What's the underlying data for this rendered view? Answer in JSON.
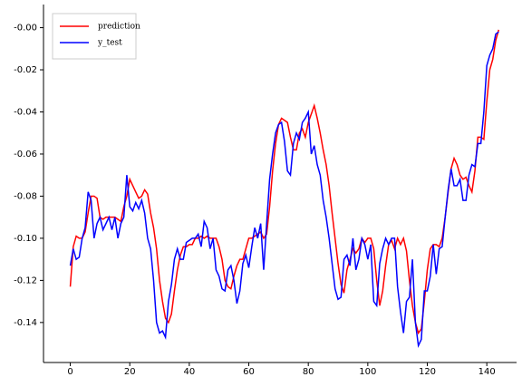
{
  "chart_data": {
    "type": "line",
    "x": [
      0,
      1,
      2,
      3,
      4,
      5,
      6,
      7,
      8,
      9,
      10,
      11,
      12,
      13,
      14,
      15,
      16,
      17,
      18,
      19,
      20,
      21,
      22,
      23,
      24,
      25,
      26,
      27,
      28,
      29,
      30,
      31,
      32,
      33,
      34,
      35,
      36,
      37,
      38,
      39,
      40,
      41,
      42,
      43,
      44,
      45,
      46,
      47,
      48,
      49,
      50,
      51,
      52,
      53,
      54,
      55,
      56,
      57,
      58,
      59,
      60,
      61,
      62,
      63,
      64,
      65,
      66,
      67,
      68,
      69,
      70,
      71,
      72,
      73,
      74,
      75,
      76,
      77,
      78,
      79,
      80,
      81,
      82,
      83,
      84,
      85,
      86,
      87,
      88,
      89,
      90,
      91,
      92,
      93,
      94,
      95,
      96,
      97,
      98,
      99,
      100,
      101,
      102,
      103,
      104,
      105,
      106,
      107,
      108,
      109,
      110,
      111,
      112,
      113,
      114,
      115,
      116,
      117,
      118,
      119,
      120,
      121,
      122,
      123,
      124,
      125,
      126,
      127,
      128,
      129,
      130,
      131,
      132,
      133,
      134,
      135,
      136,
      137,
      138,
      139,
      140,
      141,
      142,
      143,
      144
    ],
    "series": [
      {
        "name": "prediction",
        "color": "#ff0000",
        "values": [
          -0.123,
          -0.104,
          -0.099,
          -0.1,
          -0.1,
          -0.097,
          -0.088,
          -0.08,
          -0.08,
          -0.081,
          -0.09,
          -0.091,
          -0.09,
          -0.09,
          -0.09,
          -0.09,
          -0.091,
          -0.092,
          -0.085,
          -0.08,
          -0.072,
          -0.075,
          -0.078,
          -0.081,
          -0.08,
          -0.077,
          -0.079,
          -0.088,
          -0.095,
          -0.105,
          -0.12,
          -0.13,
          -0.138,
          -0.14,
          -0.136,
          -0.125,
          -0.115,
          -0.108,
          -0.104,
          -0.104,
          -0.103,
          -0.103,
          -0.1,
          -0.1,
          -0.099,
          -0.1,
          -0.099,
          -0.1,
          -0.1,
          -0.1,
          -0.104,
          -0.11,
          -0.12,
          -0.123,
          -0.124,
          -0.118,
          -0.113,
          -0.11,
          -0.11,
          -0.105,
          -0.1,
          -0.1,
          -0.099,
          -0.098,
          -0.097,
          -0.1,
          -0.098,
          -0.085,
          -0.068,
          -0.055,
          -0.046,
          -0.043,
          -0.044,
          -0.045,
          -0.052,
          -0.058,
          -0.058,
          -0.05,
          -0.048,
          -0.052,
          -0.045,
          -0.041,
          -0.037,
          -0.043,
          -0.05,
          -0.058,
          -0.065,
          -0.075,
          -0.088,
          -0.1,
          -0.112,
          -0.122,
          -0.126,
          -0.115,
          -0.11,
          -0.105,
          -0.107,
          -0.105,
          -0.1,
          -0.102,
          -0.1,
          -0.1,
          -0.105,
          -0.12,
          -0.132,
          -0.125,
          -0.113,
          -0.103,
          -0.101,
          -0.105,
          -0.1,
          -0.103,
          -0.1,
          -0.106,
          -0.12,
          -0.132,
          -0.14,
          -0.145,
          -0.143,
          -0.13,
          -0.115,
          -0.105,
          -0.103,
          -0.103,
          -0.104,
          -0.1,
          -0.09,
          -0.078,
          -0.067,
          -0.062,
          -0.065,
          -0.07,
          -0.072,
          -0.071,
          -0.075,
          -0.078,
          -0.068,
          -0.052,
          -0.052,
          -0.053,
          -0.035,
          -0.02,
          -0.015,
          -0.006,
          -0.001
        ]
      },
      {
        "name": "y_test",
        "color": "#0000ff",
        "values": [
          -0.113,
          -0.105,
          -0.11,
          -0.109,
          -0.1,
          -0.095,
          -0.078,
          -0.082,
          -0.1,
          -0.093,
          -0.09,
          -0.096,
          -0.093,
          -0.09,
          -0.096,
          -0.09,
          -0.1,
          -0.093,
          -0.09,
          -0.07,
          -0.085,
          -0.087,
          -0.083,
          -0.086,
          -0.082,
          -0.088,
          -0.1,
          -0.105,
          -0.12,
          -0.14,
          -0.145,
          -0.144,
          -0.147,
          -0.13,
          -0.122,
          -0.11,
          -0.105,
          -0.11,
          -0.11,
          -0.102,
          -0.101,
          -0.1,
          -0.1,
          -0.098,
          -0.104,
          -0.092,
          -0.095,
          -0.105,
          -0.1,
          -0.115,
          -0.118,
          -0.124,
          -0.125,
          -0.115,
          -0.113,
          -0.12,
          -0.131,
          -0.125,
          -0.112,
          -0.108,
          -0.114,
          -0.104,
          -0.095,
          -0.1,
          -0.093,
          -0.115,
          -0.093,
          -0.072,
          -0.06,
          -0.05,
          -0.046,
          -0.045,
          -0.054,
          -0.068,
          -0.07,
          -0.055,
          -0.05,
          -0.053,
          -0.045,
          -0.043,
          -0.04,
          -0.06,
          -0.056,
          -0.065,
          -0.07,
          -0.082,
          -0.09,
          -0.1,
          -0.112,
          -0.124,
          -0.129,
          -0.128,
          -0.11,
          -0.108,
          -0.113,
          -0.1,
          -0.115,
          -0.11,
          -0.1,
          -0.103,
          -0.11,
          -0.103,
          -0.13,
          -0.132,
          -0.112,
          -0.105,
          -0.1,
          -0.103,
          -0.1,
          -0.1,
          -0.123,
          -0.135,
          -0.145,
          -0.13,
          -0.128,
          -0.11,
          -0.14,
          -0.151,
          -0.148,
          -0.125,
          -0.125,
          -0.118,
          -0.103,
          -0.117,
          -0.105,
          -0.104,
          -0.09,
          -0.077,
          -0.067,
          -0.075,
          -0.075,
          -0.072,
          -0.082,
          -0.082,
          -0.07,
          -0.065,
          -0.066,
          -0.055,
          -0.055,
          -0.04,
          -0.018,
          -0.013,
          -0.01,
          -0.003,
          -0.002
        ]
      }
    ],
    "xlim": [
      -9,
      150
    ],
    "ylim": [
      -0.159,
      0.011
    ],
    "xticks": [
      0,
      20,
      40,
      60,
      80,
      100,
      120,
      140
    ],
    "yticks": [
      {
        "value": 0,
        "label": "-0.00"
      },
      -0.02,
      -0.04,
      -0.06,
      -0.08,
      {
        "value": -0.1,
        "label": "-0.10"
      },
      -0.12,
      -0.14
    ],
    "legend": "upper left"
  }
}
